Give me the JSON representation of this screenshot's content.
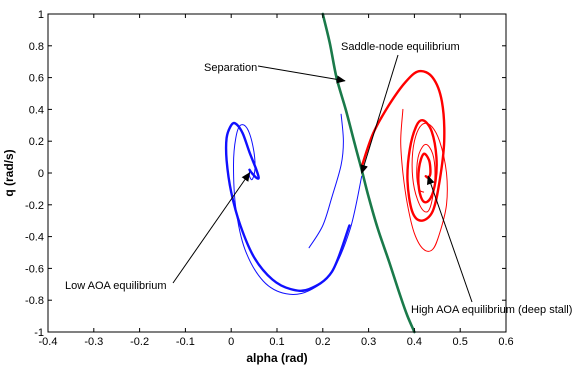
{
  "chart_data": {
    "type": "line",
    "title": "",
    "xlabel": "alpha (rad)",
    "ylabel": "q (rad/s)",
    "xlim": [
      -0.4,
      0.6
    ],
    "ylim": [
      -1,
      1
    ],
    "x_ticks": [
      "-0.4",
      "-0.3",
      "-0.2",
      "-0.1",
      "0",
      "0.1",
      "0.2",
      "0.3",
      "0.4",
      "0.5",
      "0.6"
    ],
    "y_ticks": [
      "1",
      "0.8",
      "0.6",
      "0.4",
      "0.2",
      "0",
      "-0.2",
      "-0.4",
      "-0.6",
      "-0.8",
      "-1"
    ],
    "grid": false,
    "legend": "none",
    "colors": {
      "low_aoa": "#1010ff",
      "high_aoa": "#ff0000",
      "separatrix": "#1a7a4a"
    },
    "series": [
      {
        "x": [
          0.258,
          0.22,
          0.17,
          0.13,
          0.09,
          0.05,
          0.02,
          0.0,
          -0.01,
          -0.01,
          0.0,
          0.01,
          0.025,
          0.04,
          0.055,
          0.06,
          0.055,
          0.045,
          0.04
        ],
        "y": [
          -0.33,
          -0.62,
          -0.73,
          -0.73,
          -0.67,
          -0.53,
          -0.33,
          -0.12,
          0.08,
          0.22,
          0.3,
          0.31,
          0.25,
          0.13,
          0.02,
          -0.03,
          -0.03,
          0.0,
          0.02
        ]
      },
      {
        "x": [
          0.24,
          0.245,
          0.24,
          0.22,
          0.2,
          0.17
        ],
        "y": [
          0.37,
          0.2,
          0.05,
          -0.15,
          -0.33,
          -0.47
        ]
      },
      {
        "x": [
          0.285,
          0.26,
          0.22,
          0.17,
          0.12,
          0.07,
          0.03,
          0.01,
          0.005,
          0.01,
          0.02,
          0.035,
          0.048,
          0.052,
          0.046,
          0.04,
          0.04
        ],
        "y": [
          -0.02,
          -0.35,
          -0.62,
          -0.74,
          -0.76,
          -0.68,
          -0.48,
          -0.22,
          0.05,
          0.22,
          0.3,
          0.28,
          0.16,
          0.03,
          -0.04,
          -0.02,
          0.02
        ]
      },
      {
        "x": [
          0.285,
          0.31,
          0.345,
          0.38,
          0.41,
          0.44,
          0.46,
          0.465,
          0.455,
          0.44,
          0.415,
          0.395,
          0.385,
          0.39,
          0.405,
          0.42,
          0.438,
          0.448,
          0.446,
          0.435,
          0.42,
          0.41,
          0.41,
          0.42,
          0.432,
          0.435,
          0.43,
          0.425
        ],
        "y": [
          0.04,
          0.25,
          0.43,
          0.57,
          0.64,
          0.6,
          0.45,
          0.2,
          -0.05,
          -0.24,
          -0.3,
          -0.24,
          -0.05,
          0.15,
          0.3,
          0.33,
          0.26,
          0.1,
          -0.05,
          -0.16,
          -0.18,
          -0.1,
          0.03,
          0.12,
          0.08,
          0.0,
          -0.03,
          -0.02
        ]
      },
      {
        "x": [
          0.375,
          0.37,
          0.375,
          0.385,
          0.4,
          0.42,
          0.44,
          0.455,
          0.47,
          0.47,
          0.455,
          0.435,
          0.415,
          0.4,
          0.395,
          0.4,
          0.415,
          0.43,
          0.44,
          0.445,
          0.44,
          0.425,
          0.41,
          0.405,
          0.41,
          0.42
        ],
        "y": [
          0.4,
          0.2,
          0.0,
          -0.2,
          -0.38,
          -0.48,
          -0.48,
          -0.38,
          -0.2,
          0.0,
          0.2,
          0.3,
          0.3,
          0.2,
          0.05,
          -0.1,
          -0.22,
          -0.24,
          -0.15,
          0.0,
          0.12,
          0.18,
          0.12,
          0.0,
          -0.1,
          -0.12
        ]
      },
      {
        "x": [
          0.2,
          0.215,
          0.23,
          0.25,
          0.27,
          0.285,
          0.3,
          0.32,
          0.345,
          0.37,
          0.385,
          0.4
        ],
        "y": [
          1.0,
          0.82,
          0.6,
          0.4,
          0.18,
          0.02,
          -0.15,
          -0.35,
          -0.56,
          -0.78,
          -0.9,
          -1.0
        ]
      }
    ],
    "annotations": [
      {
        "text": "Separation",
        "target": [
          0.248,
          0.58
        ]
      },
      {
        "text": "Saddle-node equilibrium",
        "target": [
          0.285,
          0.0
        ]
      },
      {
        "text": "Low AOA equilibrium",
        "target": [
          0.04,
          0.0
        ]
      },
      {
        "text": "High AOA equilibrium (deep stall)",
        "target": [
          0.43,
          -0.02
        ]
      }
    ]
  }
}
